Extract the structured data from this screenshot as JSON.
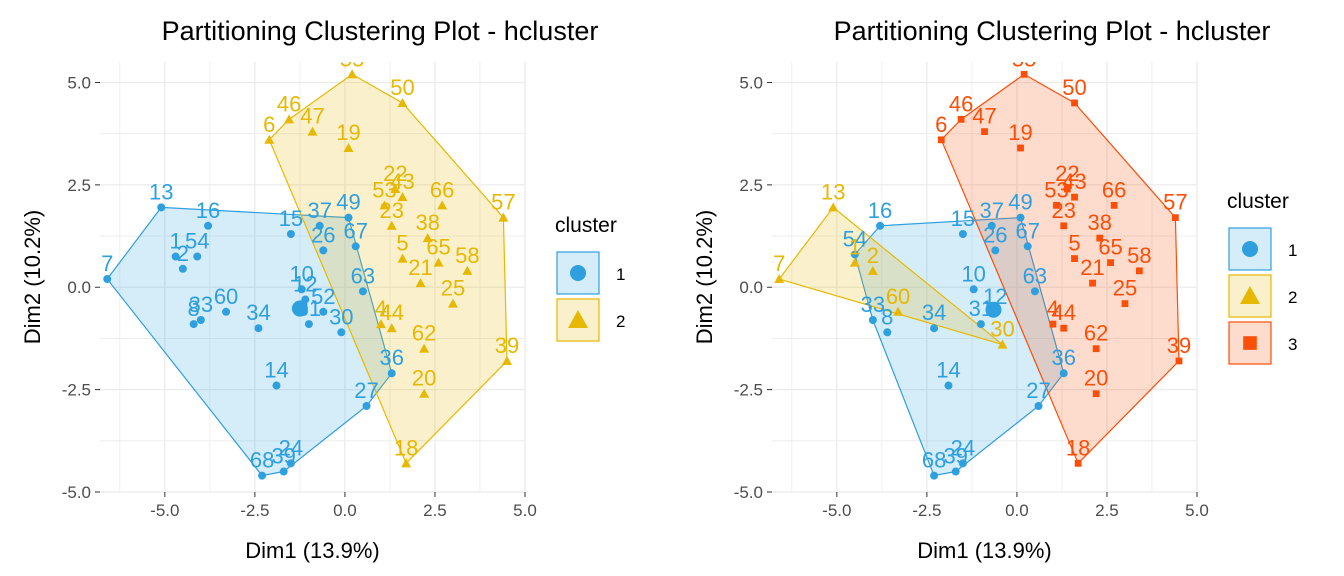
{
  "charts": [
    {
      "title": "Partitioning Clustering Plot - hcluster",
      "legend_title": "cluster",
      "legend_items": [
        {
          "label": "1",
          "color": "#2e9fdf",
          "shape": "circle"
        },
        {
          "label": "2",
          "color": "#e7b800",
          "shape": "triangle"
        }
      ]
    },
    {
      "title": "Partitioning Clustering Plot - hcluster",
      "legend_title": "cluster",
      "legend_items": [
        {
          "label": "1",
          "color": "#2e9fdf",
          "shape": "circle"
        },
        {
          "label": "2",
          "color": "#e7b800",
          "shape": "triangle"
        },
        {
          "label": "3",
          "color": "#fc4e07",
          "shape": "square"
        }
      ]
    }
  ],
  "chart_data": [
    {
      "type": "scatter",
      "title": "Partitioning Clustering Plot - hcluster",
      "xlabel": "Dim1 (13.9%)",
      "ylabel": "Dim2 (10.2%)",
      "xlim": [
        -6.8,
        5.0
      ],
      "ylim": [
        -5.0,
        5.5
      ],
      "xticks": [
        "-5.0",
        "-2.5",
        "0.0",
        "2.5",
        "5.0"
      ],
      "yticks": [
        "-5.0",
        "-2.5",
        "0.0",
        "2.5",
        "5.0"
      ],
      "grid": true,
      "legend_position": "right",
      "series": [
        {
          "name": "1",
          "color": "#2e9fdf",
          "shape": "circle",
          "centroid": [
            -1.25,
            -0.52
          ],
          "points": [
            {
              "label": "7",
              "x": -6.6,
              "y": 0.2
            },
            {
              "label": "13",
              "x": -5.1,
              "y": 1.95
            },
            {
              "label": "16",
              "x": -3.8,
              "y": 1.5
            },
            {
              "label": "54",
              "x": -4.1,
              "y": 0.75
            },
            {
              "label": "2",
              "x": -4.5,
              "y": 0.45
            },
            {
              "label": "1",
              "x": -4.7,
              "y": 0.75
            },
            {
              "label": "33",
              "x": -4.0,
              "y": -0.8
            },
            {
              "label": "8",
              "x": -4.2,
              "y": -0.9
            },
            {
              "label": "60",
              "x": -3.3,
              "y": -0.6
            },
            {
              "label": "34",
              "x": -2.4,
              "y": -1.0
            },
            {
              "label": "15",
              "x": -1.5,
              "y": 1.3
            },
            {
              "label": "37",
              "x": -0.7,
              "y": 1.5
            },
            {
              "label": "49",
              "x": 0.1,
              "y": 1.7
            },
            {
              "label": "26",
              "x": -0.6,
              "y": 0.9
            },
            {
              "label": "10",
              "x": -1.2,
              "y": -0.05
            },
            {
              "label": "31",
              "x": -1.0,
              "y": -0.9
            },
            {
              "label": "52",
              "x": -0.6,
              "y": -0.6
            },
            {
              "label": "30",
              "x": -0.1,
              "y": -1.1
            },
            {
              "label": "14",
              "x": -1.9,
              "y": -2.4
            },
            {
              "label": "27",
              "x": 0.6,
              "y": -2.9
            },
            {
              "label": "36",
              "x": 1.3,
              "y": -2.1
            },
            {
              "label": "63",
              "x": 0.5,
              "y": -0.1
            },
            {
              "label": "24",
              "x": -1.5,
              "y": -4.3
            },
            {
              "label": "68",
              "x": -2.3,
              "y": -4.6
            },
            {
              "label": "39",
              "x": -1.7,
              "y": -4.5
            },
            {
              "label": "67",
              "x": 0.3,
              "y": 1.0
            },
            {
              "label": "12",
              "x": -1.1,
              "y": -0.3
            }
          ]
        },
        {
          "name": "2",
          "color": "#e7b800",
          "shape": "triangle",
          "points": [
            {
              "label": "6",
              "x": -2.1,
              "y": 3.6
            },
            {
              "label": "46",
              "x": -1.55,
              "y": 4.1
            },
            {
              "label": "47",
              "x": -0.9,
              "y": 3.8
            },
            {
              "label": "55",
              "x": 0.2,
              "y": 5.2
            },
            {
              "label": "50",
              "x": 1.6,
              "y": 4.5
            },
            {
              "label": "19",
              "x": 0.1,
              "y": 3.4
            },
            {
              "label": "22",
              "x": 1.4,
              "y": 2.4
            },
            {
              "label": "43",
              "x": 1.6,
              "y": 2.2
            },
            {
              "label": "53",
              "x": 1.1,
              "y": 2.0
            },
            {
              "label": "66",
              "x": 2.7,
              "y": 2.0
            },
            {
              "label": "57",
              "x": 4.4,
              "y": 1.7
            },
            {
              "label": "23",
              "x": 1.3,
              "y": 1.5
            },
            {
              "label": "38",
              "x": 2.3,
              "y": 1.2
            },
            {
              "label": "5",
              "x": 1.6,
              "y": 0.7
            },
            {
              "label": "65",
              "x": 2.6,
              "y": 0.6
            },
            {
              "label": "58",
              "x": 3.4,
              "y": 0.4
            },
            {
              "label": "21",
              "x": 2.1,
              "y": 0.1
            },
            {
              "label": "25",
              "x": 3.0,
              "y": -0.4
            },
            {
              "label": "4",
              "x": 1.0,
              "y": -0.9
            },
            {
              "label": "44",
              "x": 1.3,
              "y": -1.0
            },
            {
              "label": "62",
              "x": 2.2,
              "y": -1.5
            },
            {
              "label": "39",
              "x": 4.5,
              "y": -1.8
            },
            {
              "label": "20",
              "x": 2.2,
              "y": -2.6
            },
            {
              "label": "18",
              "x": 1.7,
              "y": -4.3
            }
          ]
        }
      ]
    },
    {
      "type": "scatter",
      "title": "Partitioning Clustering Plot - hcluster",
      "xlabel": "Dim1 (13.9%)",
      "ylabel": "Dim2 (10.2%)",
      "xlim": [
        -6.8,
        5.0
      ],
      "ylim": [
        -5.0,
        5.5
      ],
      "xticks": [
        "-5.0",
        "-2.5",
        "0.0",
        "2.5",
        "5.0"
      ],
      "yticks": [
        "-5.0",
        "-2.5",
        "0.0",
        "2.5",
        "5.0"
      ],
      "grid": true,
      "legend_position": "right",
      "series": [
        {
          "name": "1",
          "color": "#2e9fdf",
          "shape": "circle",
          "centroid": [
            -0.65,
            -0.55
          ],
          "points": [
            {
              "label": "16",
              "x": -3.8,
              "y": 1.5
            },
            {
              "label": "54",
              "x": -4.5,
              "y": 0.8
            },
            {
              "label": "33",
              "x": -4.0,
              "y": -0.8
            },
            {
              "label": "8",
              "x": -3.6,
              "y": -1.1
            },
            {
              "label": "34",
              "x": -2.3,
              "y": -1.0
            },
            {
              "label": "15",
              "x": -1.5,
              "y": 1.3
            },
            {
              "label": "37",
              "x": -0.7,
              "y": 1.5
            },
            {
              "label": "49",
              "x": 0.1,
              "y": 1.7
            },
            {
              "label": "26",
              "x": -0.6,
              "y": 0.9
            },
            {
              "label": "67",
              "x": 0.3,
              "y": 1.0
            },
            {
              "label": "10",
              "x": -1.2,
              "y": -0.05
            },
            {
              "label": "31",
              "x": -1.0,
              "y": -0.9
            },
            {
              "label": "12",
              "x": -0.6,
              "y": -0.6
            },
            {
              "label": "14",
              "x": -1.9,
              "y": -2.4
            },
            {
              "label": "27",
              "x": 0.6,
              "y": -2.9
            },
            {
              "label": "36",
              "x": 1.3,
              "y": -2.1
            },
            {
              "label": "63",
              "x": 0.5,
              "y": -0.1
            },
            {
              "label": "24",
              "x": -1.5,
              "y": -4.3
            },
            {
              "label": "68",
              "x": -2.3,
              "y": -4.6
            },
            {
              "label": "39",
              "x": -1.7,
              "y": -4.5
            }
          ]
        },
        {
          "name": "2",
          "color": "#e7b800",
          "shape": "triangle",
          "points": [
            {
              "label": "7",
              "x": -6.6,
              "y": 0.2
            },
            {
              "label": "13",
              "x": -5.1,
              "y": 1.95
            },
            {
              "label": "2",
              "x": -4.0,
              "y": 0.4
            },
            {
              "label": "1",
              "x": -4.5,
              "y": 0.6
            },
            {
              "label": "60",
              "x": -3.3,
              "y": -0.6
            },
            {
              "label": "30",
              "x": -0.4,
              "y": -1.4
            }
          ]
        },
        {
          "name": "3",
          "color": "#fc4e07",
          "shape": "square",
          "points": [
            {
              "label": "6",
              "x": -2.1,
              "y": 3.6
            },
            {
              "label": "46",
              "x": -1.55,
              "y": 4.1
            },
            {
              "label": "47",
              "x": -0.9,
              "y": 3.8
            },
            {
              "label": "55",
              "x": 0.2,
              "y": 5.2
            },
            {
              "label": "50",
              "x": 1.6,
              "y": 4.5
            },
            {
              "label": "19",
              "x": 0.1,
              "y": 3.4
            },
            {
              "label": "22",
              "x": 1.4,
              "y": 2.4
            },
            {
              "label": "43",
              "x": 1.6,
              "y": 2.2
            },
            {
              "label": "53",
              "x": 1.1,
              "y": 2.0
            },
            {
              "label": "66",
              "x": 2.7,
              "y": 2.0
            },
            {
              "label": "57",
              "x": 4.4,
              "y": 1.7
            },
            {
              "label": "23",
              "x": 1.3,
              "y": 1.5
            },
            {
              "label": "38",
              "x": 2.3,
              "y": 1.2
            },
            {
              "label": "5",
              "x": 1.6,
              "y": 0.7
            },
            {
              "label": "65",
              "x": 2.6,
              "y": 0.6
            },
            {
              "label": "58",
              "x": 3.4,
              "y": 0.4
            },
            {
              "label": "21",
              "x": 2.1,
              "y": 0.1
            },
            {
              "label": "25",
              "x": 3.0,
              "y": -0.4
            },
            {
              "label": "4",
              "x": 1.0,
              "y": -0.9
            },
            {
              "label": "44",
              "x": 1.3,
              "y": -1.0
            },
            {
              "label": "62",
              "x": 2.2,
              "y": -1.5
            },
            {
              "label": "39",
              "x": 4.5,
              "y": -1.8
            },
            {
              "label": "20",
              "x": 2.2,
              "y": -2.6
            },
            {
              "label": "18",
              "x": 1.7,
              "y": -4.3
            }
          ]
        }
      ]
    }
  ]
}
